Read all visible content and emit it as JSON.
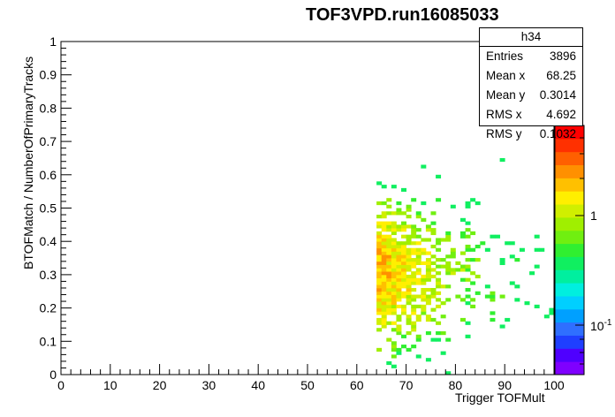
{
  "chart_data": {
    "type": "heatmap",
    "title": "TOF3VPD.run16085033",
    "xlabel": "Trigger TOFMult",
    "ylabel": "BTOFMatch / NumberOfPrimaryTracks",
    "xlim": [
      0,
      100
    ],
    "ylim": [
      0,
      1
    ],
    "x_ticks": [
      "0",
      "10",
      "20",
      "30",
      "40",
      "50",
      "60",
      "70",
      "80",
      "90",
      "100"
    ],
    "y_ticks": [
      "0",
      "0.1",
      "0.2",
      "0.3",
      "0.4",
      "0.5",
      "0.6",
      "0.7",
      "0.8",
      "0.9",
      "1"
    ],
    "z_scale": "log",
    "z_ticks": [
      "10^-1",
      "1"
    ],
    "bins": {
      "x_width": 1,
      "y_width": 0.01,
      "x_range_filled": [
        64,
        100
      ],
      "y_range_filled": [
        0,
        0.7
      ]
    },
    "peak": {
      "x": 65,
      "y": 0.3
    },
    "palette": [
      "#7f00ff",
      "#4f00ff",
      "#1f3fff",
      "#2f6fff",
      "#00a0ff",
      "#00cfff",
      "#00efdf",
      "#00ef9f",
      "#10ef60",
      "#30ef30",
      "#70ef10",
      "#a0ef00",
      "#d0ef00",
      "#ffef00",
      "#ffc000",
      "#ff9000",
      "#ff6000",
      "#ff3000",
      "#ff0000"
    ]
  },
  "stats": {
    "name": "h34",
    "rows": [
      {
        "label": "Entries",
        "value": "3896"
      },
      {
        "label": "Mean x",
        "value": "68.25"
      },
      {
        "label": "Mean y",
        "value": "0.3014"
      },
      {
        "label": "RMS x",
        "value": "4.692"
      },
      {
        "label": "RMS y",
        "value": "0.1032"
      }
    ]
  }
}
